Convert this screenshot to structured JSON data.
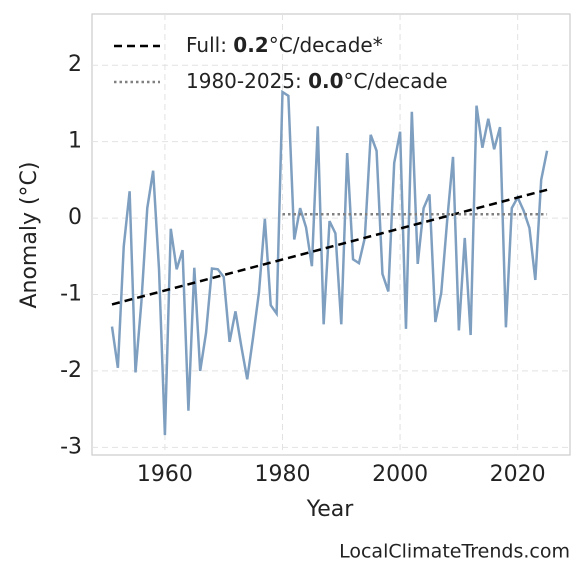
{
  "chart_data": {
    "type": "line",
    "x_label": "Year",
    "y_label": "Anomaly (°C)",
    "x": [
      1951,
      1952,
      1953,
      1954,
      1955,
      1956,
      1957,
      1958,
      1959,
      1960,
      1961,
      1962,
      1963,
      1964,
      1965,
      1966,
      1967,
      1968,
      1969,
      1970,
      1971,
      1972,
      1973,
      1974,
      1975,
      1976,
      1977,
      1978,
      1979,
      1980,
      1981,
      1982,
      1983,
      1984,
      1985,
      1986,
      1987,
      1988,
      1989,
      1990,
      1991,
      1992,
      1993,
      1994,
      1995,
      1996,
      1997,
      1998,
      1999,
      2000,
      2001,
      2002,
      2003,
      2004,
      2005,
      2006,
      2007,
      2008,
      2009,
      2010,
      2011,
      2012,
      2013,
      2014,
      2015,
      2016,
      2017,
      2018,
      2019,
      2020,
      2021,
      2022,
      2023,
      2024,
      2025
    ],
    "series": [
      {
        "color": "#7f9fc0",
        "values": [
          -1.42,
          -1.96,
          -0.37,
          0.35,
          -2.02,
          -1.1,
          0.13,
          0.62,
          -0.67,
          -2.84,
          -0.14,
          -0.67,
          -0.42,
          -2.52,
          -0.65,
          -2.0,
          -1.5,
          -0.66,
          -0.67,
          -0.77,
          -1.62,
          -1.22,
          -1.68,
          -2.11,
          -1.56,
          -0.97,
          -0.01,
          -1.14,
          -1.25,
          1.65,
          1.6,
          -0.28,
          0.13,
          -0.12,
          -0.63,
          1.2,
          -1.39,
          -0.04,
          -0.2,
          -1.39,
          0.85,
          -0.54,
          -0.59,
          -0.26,
          1.09,
          0.88,
          -0.73,
          -0.96,
          0.72,
          1.13,
          -1.45,
          1.39,
          -0.6,
          0.13,
          0.31,
          -1.36,
          -0.98,
          -0.04,
          0.8,
          -1.47,
          -0.26,
          -1.53,
          1.47,
          0.92,
          1.3,
          0.9,
          1.19,
          -1.43,
          0.13,
          0.27,
          0.1,
          -0.13,
          -0.81,
          0.5,
          0.88
        ]
      }
    ],
    "trend_lines": [
      {
        "name_parts": [
          "Full: ",
          "0.2",
          "°C/decade*"
        ],
        "color": "#000000",
        "dash": "dashed",
        "x": [
          1951,
          2025
        ],
        "values": [
          -1.13,
          0.37
        ]
      },
      {
        "name_parts": [
          "1980-2025: ",
          "0.0",
          "°C/decade"
        ],
        "color": "#808080",
        "dash": "dotted",
        "x": [
          1980,
          2025
        ],
        "values": [
          0.05,
          0.05
        ]
      }
    ],
    "xlim": [
      1947.6,
      2028.9
    ],
    "ylim": [
      -3.1,
      2.67
    ],
    "xticks": [
      1960,
      1980,
      2000,
      2020
    ],
    "yticks": [
      -3,
      -2,
      -1,
      0,
      1,
      2
    ],
    "grid": true,
    "legend": "upper left",
    "watermark": "LocalClimateTrends.com"
  }
}
